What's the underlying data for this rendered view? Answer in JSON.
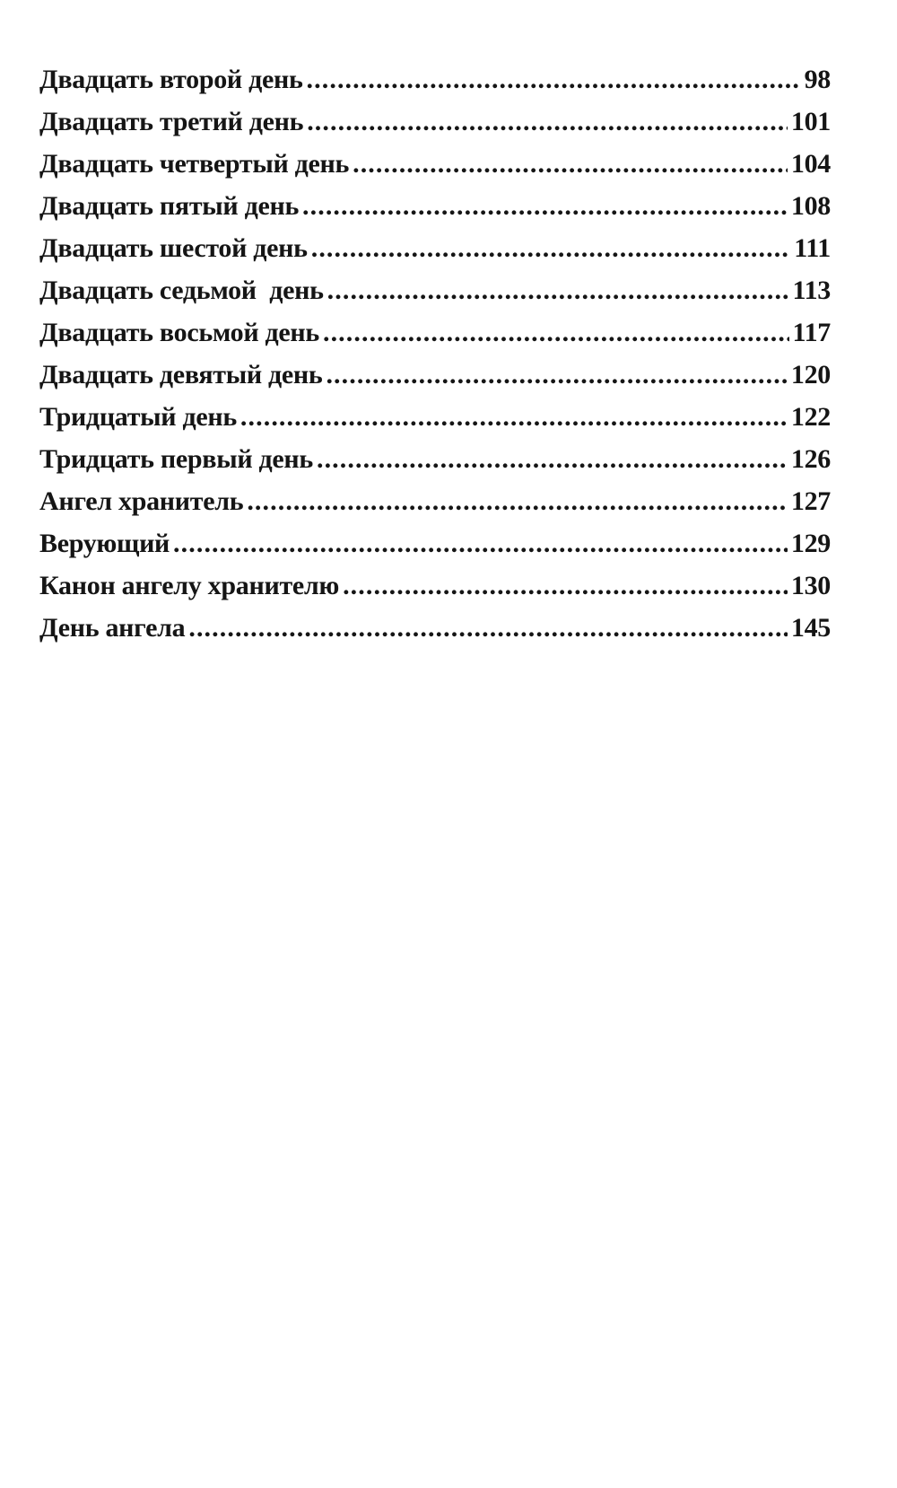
{
  "toc": [
    {
      "title": "Двадцать второй день",
      "page": "98"
    },
    {
      "title": "Двадцать третий день",
      "page": "101"
    },
    {
      "title": "Двадцать четвертый день",
      "page": "104"
    },
    {
      "title": "Двадцать пятый день",
      "page": "108"
    },
    {
      "title": "Двадцать шестой день",
      "page": "111"
    },
    {
      "title": "Двадцать седьмой  день",
      "page": "113"
    },
    {
      "title": "Двадцать восьмой день",
      "page": "117"
    },
    {
      "title": "Двадцать девятый день",
      "page": "120"
    },
    {
      "title": "Тридцатый день",
      "page": "122"
    },
    {
      "title": "Тридцать первый день",
      "page": "126"
    },
    {
      "title": "Ангел хранитель",
      "page": "127"
    },
    {
      "title": "Верующий",
      "page": "129"
    },
    {
      "title": "Канон ангелу хранителю",
      "page": "130"
    },
    {
      "title": "День ангела",
      "page": "145"
    }
  ]
}
